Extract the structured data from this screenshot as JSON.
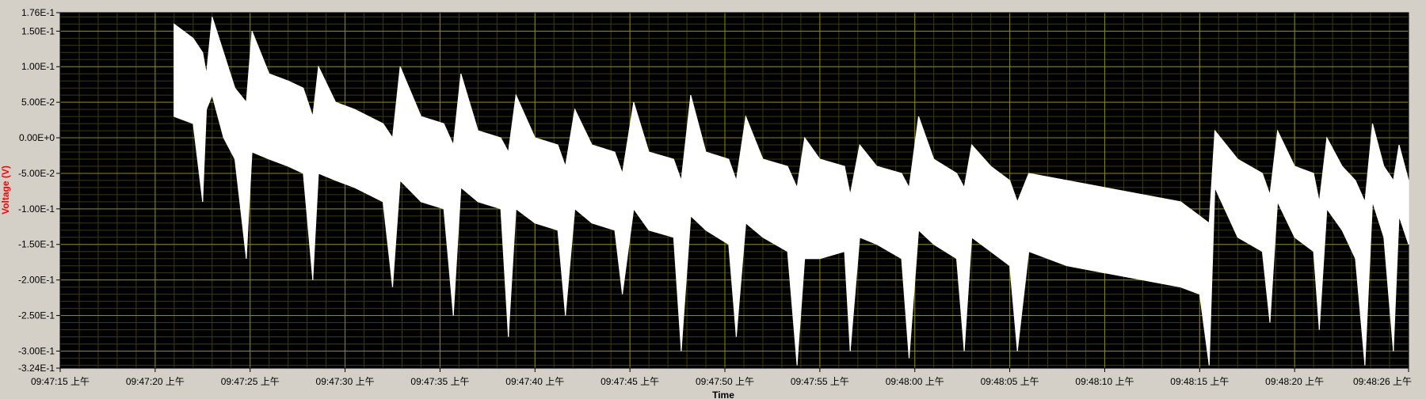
{
  "chart_data": {
    "type": "line",
    "title": "",
    "xlabel": "Time",
    "ylabel": "Voltage (V)",
    "xlim": [
      "09:47:15",
      "09:48:26"
    ],
    "ylim": [
      -0.324,
      0.176
    ],
    "grid": true,
    "colors": {
      "background": "#d4d0c8",
      "plot_background": "#000000",
      "major_grid": "#8a8a00",
      "minor_grid": "#3c3c00",
      "trace": "#ffffff",
      "ylabel": "#ff0000",
      "xlabel": "#000000"
    },
    "y_ticks": [
      {
        "value": 0.176,
        "label": "1.76E-1"
      },
      {
        "value": 0.15,
        "label": "1.50E-1"
      },
      {
        "value": 0.1,
        "label": "1.00E-1"
      },
      {
        "value": 0.05,
        "label": "5.00E-2"
      },
      {
        "value": 0.0,
        "label": "0.00E+0"
      },
      {
        "value": -0.05,
        "label": "-5.00E-2"
      },
      {
        "value": -0.1,
        "label": "-1.00E-1"
      },
      {
        "value": -0.15,
        "label": "-1.50E-1"
      },
      {
        "value": -0.2,
        "label": "-2.00E-1"
      },
      {
        "value": -0.25,
        "label": "-2.50E-1"
      },
      {
        "value": -0.3,
        "label": "-3.00E-1"
      },
      {
        "value": -0.324,
        "label": "-3.24E-1"
      }
    ],
    "x_ticks": [
      {
        "value": "09:47:15",
        "label": "09:47:15 上午"
      },
      {
        "value": "09:47:20",
        "label": "09:47:20 上午"
      },
      {
        "value": "09:47:25",
        "label": "09:47:25 上午"
      },
      {
        "value": "09:47:30",
        "label": "09:47:30 上午"
      },
      {
        "value": "09:47:35",
        "label": "09:47:35 上午"
      },
      {
        "value": "09:47:40",
        "label": "09:47:40 上午"
      },
      {
        "value": "09:47:45",
        "label": "09:47:45 上午"
      },
      {
        "value": "09:47:50",
        "label": "09:47:50 上午"
      },
      {
        "value": "09:47:55",
        "label": "09:47:55 上午"
      },
      {
        "value": "09:48:00",
        "label": "09:48:00 上午"
      },
      {
        "value": "09:48:05",
        "label": "09:48:05 上午"
      },
      {
        "value": "09:48:10",
        "label": "09:48:10 上午"
      },
      {
        "value": "09:48:15",
        "label": "09:48:15 上午"
      },
      {
        "value": "09:48:20",
        "label": "09:48:20 上午"
      },
      {
        "value": "09:48:26",
        "label": "09:48:26 上午"
      }
    ],
    "series": [
      {
        "envelope": [
          {
            "x": "09:47:21.0",
            "upper": 0.16,
            "lower": 0.03
          },
          {
            "x": "09:47:22.0",
            "upper": 0.14,
            "lower": 0.02
          },
          {
            "x": "09:47:22.5",
            "upper": 0.12,
            "lower": -0.09
          },
          {
            "x": "09:47:22.7",
            "upper": 0.09,
            "lower": 0.04
          },
          {
            "x": "09:47:23.0",
            "upper": 0.17,
            "lower": 0.06
          },
          {
            "x": "09:47:23.6",
            "upper": 0.12,
            "lower": 0.0
          },
          {
            "x": "09:47:24.2",
            "upper": 0.07,
            "lower": -0.03
          },
          {
            "x": "09:47:24.8",
            "upper": 0.05,
            "lower": -0.17
          },
          {
            "x": "09:47:25.1",
            "upper": 0.15,
            "lower": -0.02
          },
          {
            "x": "09:47:26.0",
            "upper": 0.09,
            "lower": -0.03
          },
          {
            "x": "09:47:27.0",
            "upper": 0.08,
            "lower": -0.04
          },
          {
            "x": "09:47:27.8",
            "upper": 0.07,
            "lower": -0.05
          },
          {
            "x": "09:47:28.3",
            "upper": 0.03,
            "lower": -0.2
          },
          {
            "x": "09:47:28.6",
            "upper": 0.1,
            "lower": -0.05
          },
          {
            "x": "09:47:29.5",
            "upper": 0.05,
            "lower": -0.06
          },
          {
            "x": "09:47:30.5",
            "upper": 0.04,
            "lower": -0.07
          },
          {
            "x": "09:47:32.0",
            "upper": 0.02,
            "lower": -0.09
          },
          {
            "x": "09:47:32.5",
            "upper": 0.0,
            "lower": -0.21
          },
          {
            "x": "09:47:32.9",
            "upper": 0.1,
            "lower": -0.06
          },
          {
            "x": "09:47:34.0",
            "upper": 0.03,
            "lower": -0.09
          },
          {
            "x": "09:47:35.2",
            "upper": 0.02,
            "lower": -0.1
          },
          {
            "x": "09:47:35.7",
            "upper": -0.01,
            "lower": -0.25
          },
          {
            "x": "09:47:36.1",
            "upper": 0.09,
            "lower": -0.07
          },
          {
            "x": "09:47:37.0",
            "upper": 0.01,
            "lower": -0.09
          },
          {
            "x": "09:47:38.2",
            "upper": 0.0,
            "lower": -0.1
          },
          {
            "x": "09:47:38.6",
            "upper": -0.02,
            "lower": -0.28
          },
          {
            "x": "09:47:39.0",
            "upper": 0.06,
            "lower": -0.1
          },
          {
            "x": "09:47:40.0",
            "upper": 0.0,
            "lower": -0.12
          },
          {
            "x": "09:47:41.2",
            "upper": -0.01,
            "lower": -0.13
          },
          {
            "x": "09:47:41.6",
            "upper": -0.04,
            "lower": -0.25
          },
          {
            "x": "09:47:42.1",
            "upper": 0.04,
            "lower": -0.1
          },
          {
            "x": "09:47:43.0",
            "upper": -0.01,
            "lower": -0.12
          },
          {
            "x": "09:47:44.2",
            "upper": -0.02,
            "lower": -0.13
          },
          {
            "x": "09:47:44.6",
            "upper": -0.05,
            "lower": -0.22
          },
          {
            "x": "09:47:45.2",
            "upper": 0.05,
            "lower": -0.1
          },
          {
            "x": "09:47:46.0",
            "upper": -0.02,
            "lower": -0.13
          },
          {
            "x": "09:47:47.3",
            "upper": -0.03,
            "lower": -0.14
          },
          {
            "x": "09:47:47.7",
            "upper": -0.06,
            "lower": -0.3
          },
          {
            "x": "09:47:48.2",
            "upper": 0.06,
            "lower": -0.11
          },
          {
            "x": "09:47:49.0",
            "upper": -0.02,
            "lower": -0.13
          },
          {
            "x": "09:47:50.2",
            "upper": -0.03,
            "lower": -0.15
          },
          {
            "x": "09:47:50.6",
            "upper": -0.06,
            "lower": -0.28
          },
          {
            "x": "09:47:51.1",
            "upper": 0.03,
            "lower": -0.12
          },
          {
            "x": "09:47:52.0",
            "upper": -0.03,
            "lower": -0.14
          },
          {
            "x": "09:47:53.3",
            "upper": -0.04,
            "lower": -0.16
          },
          {
            "x": "09:47:53.8",
            "upper": -0.07,
            "lower": -0.32
          },
          {
            "x": "09:47:54.2",
            "upper": 0.0,
            "lower": -0.17
          },
          {
            "x": "09:47:55.0",
            "upper": -0.03,
            "lower": -0.17
          },
          {
            "x": "09:47:56.3",
            "upper": -0.04,
            "lower": -0.16
          },
          {
            "x": "09:47:56.6",
            "upper": -0.08,
            "lower": -0.3
          },
          {
            "x": "09:47:57.1",
            "upper": -0.01,
            "lower": -0.14
          },
          {
            "x": "09:47:58.0",
            "upper": -0.04,
            "lower": -0.15
          },
          {
            "x": "09:47:59.3",
            "upper": -0.05,
            "lower": -0.17
          },
          {
            "x": "09:47:59.7",
            "upper": -0.07,
            "lower": -0.31
          },
          {
            "x": "09:48:00.2",
            "upper": 0.03,
            "lower": -0.13
          },
          {
            "x": "09:48:01.0",
            "upper": -0.03,
            "lower": -0.15
          },
          {
            "x": "09:48:02.2",
            "upper": -0.05,
            "lower": -0.17
          },
          {
            "x": "09:48:02.6",
            "upper": -0.07,
            "lower": -0.3
          },
          {
            "x": "09:48:03.0",
            "upper": -0.01,
            "lower": -0.14
          },
          {
            "x": "09:48:04.0",
            "upper": -0.04,
            "lower": -0.16
          },
          {
            "x": "09:48:05.0",
            "upper": -0.06,
            "lower": -0.18
          },
          {
            "x": "09:48:05.4",
            "upper": -0.09,
            "lower": -0.3
          },
          {
            "x": "09:48:06.0",
            "upper": -0.05,
            "lower": -0.16
          },
          {
            "x": "09:48:08.0",
            "upper": -0.06,
            "lower": -0.18
          },
          {
            "x": "09:48:10.0",
            "upper": -0.07,
            "lower": -0.19
          },
          {
            "x": "09:48:12.0",
            "upper": -0.08,
            "lower": -0.2
          },
          {
            "x": "09:48:14.0",
            "upper": -0.09,
            "lower": -0.21
          },
          {
            "x": "09:48:15.0",
            "upper": -0.11,
            "lower": -0.22
          },
          {
            "x": "09:48:15.5",
            "upper": -0.12,
            "lower": -0.32
          },
          {
            "x": "09:48:15.8",
            "upper": 0.01,
            "lower": -0.07
          },
          {
            "x": "09:48:17.0",
            "upper": -0.03,
            "lower": -0.14
          },
          {
            "x": "09:48:18.3",
            "upper": -0.05,
            "lower": -0.16
          },
          {
            "x": "09:48:18.7",
            "upper": -0.08,
            "lower": -0.26
          },
          {
            "x": "09:48:19.1",
            "upper": 0.01,
            "lower": -0.09
          },
          {
            "x": "09:48:20.0",
            "upper": -0.04,
            "lower": -0.14
          },
          {
            "x": "09:48:21.0",
            "upper": -0.05,
            "lower": -0.16
          },
          {
            "x": "09:48:21.3",
            "upper": -0.09,
            "lower": -0.27
          },
          {
            "x": "09:48:21.7",
            "upper": 0.0,
            "lower": -0.1
          },
          {
            "x": "09:48:22.5",
            "upper": -0.04,
            "lower": -0.13
          },
          {
            "x": "09:48:23.2",
            "upper": -0.06,
            "lower": -0.17
          },
          {
            "x": "09:48:23.7",
            "upper": -0.09,
            "lower": -0.32
          },
          {
            "x": "09:48:24.1",
            "upper": 0.02,
            "lower": -0.09
          },
          {
            "x": "09:48:24.7",
            "upper": -0.04,
            "lower": -0.14
          },
          {
            "x": "09:48:25.2",
            "upper": -0.06,
            "lower": -0.3
          },
          {
            "x": "09:48:25.5",
            "upper": -0.01,
            "lower": -0.11
          },
          {
            "x": "09:48:26.0",
            "upper": -0.06,
            "lower": -0.15
          }
        ]
      }
    ]
  }
}
